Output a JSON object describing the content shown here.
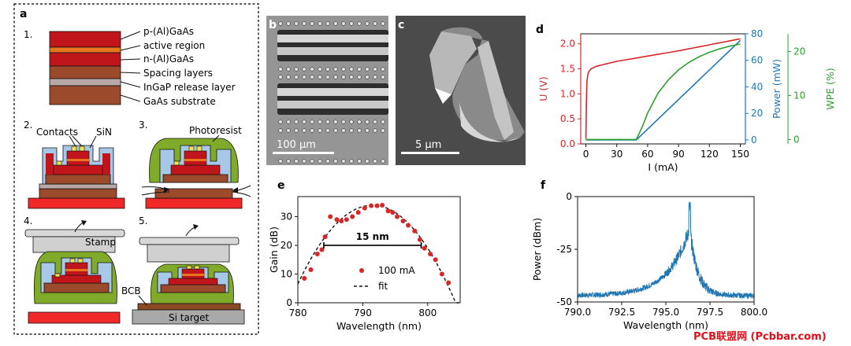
{
  "panel_a": {
    "label": "a",
    "step_labels": [
      "1.",
      "2.",
      "3.",
      "4.",
      "5."
    ],
    "layers": [
      {
        "name": "p-(Al)GaAs",
        "color": "#c0151b"
      },
      {
        "name": "active region",
        "color": "#e8741c"
      },
      {
        "name": "n-(Al)GaAs",
        "color": "#c0151b"
      },
      {
        "name": "Spacing layers",
        "color": "#9c4a2c"
      },
      {
        "name": "InGaP release layer",
        "color": "#b8a8a8"
      },
      {
        "name": "GaAs substrate",
        "color": "#9c4a2c"
      }
    ],
    "contacts_label": "Contacts",
    "sin_label": "SiN",
    "photoresist_label": "Photoresist",
    "stamp_label": "Stamp",
    "bcb_label": "BCB",
    "si_target_label": "Si target",
    "colors": {
      "photoresist": "#7faa2a",
      "sin": "#a8c8e8",
      "stamp": "#d0d0d0",
      "target": "#f02828",
      "si": "#a8a8a8",
      "contact": "#f2e14a"
    }
  },
  "panel_b": {
    "label": "b",
    "scalebar": "100 μm"
  },
  "panel_c": {
    "label": "c",
    "scalebar": "5 μm"
  },
  "panel_d": {
    "label": "d"
  },
  "panel_e": {
    "label": "e",
    "annotation": "15 nm"
  },
  "panel_f": {
    "label": "f"
  },
  "watermark": "PCB联盟网 (Pcbbar.com)",
  "chart_data": [
    {
      "id": "d",
      "type": "line",
      "xlabel": "I (mA)",
      "x_ticks": [
        0,
        30,
        60,
        90,
        120,
        150
      ],
      "xlim": [
        -5,
        155
      ],
      "axes": [
        {
          "label": "U (V)",
          "color": "#d62728",
          "ylim": [
            0,
            2.2
          ],
          "ticks": [
            "0.0",
            "0.5",
            "1.0",
            "1.5",
            "2.0"
          ]
        },
        {
          "label": "Power (mW)",
          "color": "#1f77b4",
          "ylim": [
            -3,
            80
          ],
          "ticks": [
            "0",
            "20",
            "40",
            "60",
            "80"
          ]
        },
        {
          "label": "WPE (%)",
          "color": "#2ca02c",
          "ylim": [
            -1,
            24
          ],
          "ticks": [
            "0",
            "10",
            "20"
          ]
        }
      ],
      "series": [
        {
          "name": "U",
          "axis": 0,
          "x": [
            0,
            0.5,
            1,
            2,
            3,
            5,
            10,
            20,
            30,
            50,
            70,
            90,
            110,
            130,
            150
          ],
          "y": [
            0.1,
            0.8,
            1.25,
            1.4,
            1.45,
            1.5,
            1.55,
            1.6,
            1.65,
            1.72,
            1.79,
            1.86,
            1.94,
            2.02,
            2.1
          ]
        },
        {
          "name": "Power",
          "axis": 1,
          "x": [
            0,
            49,
            150
          ],
          "y": [
            0,
            0,
            75
          ]
        },
        {
          "name": "WPE",
          "axis": 2,
          "x": [
            0,
            49,
            55,
            60,
            70,
            80,
            90,
            100,
            110,
            120,
            130,
            140,
            150
          ],
          "y": [
            0,
            0,
            3,
            6,
            10.5,
            13.5,
            15.8,
            17.5,
            18.8,
            19.8,
            20.6,
            21.2,
            21.7
          ]
        }
      ]
    },
    {
      "id": "e",
      "type": "scatter",
      "xlabel": "Wavelength (nm)",
      "ylabel": "Gain (dB)",
      "xlim": [
        780,
        805
      ],
      "ylim": [
        0,
        37
      ],
      "x_ticks": [
        780,
        790,
        800
      ],
      "y_ticks": [
        0,
        10,
        20,
        30
      ],
      "legend": [
        "100 mA",
        "fit"
      ],
      "legend_position": "bottom-center",
      "series": [
        {
          "name": "100 mA",
          "x": [
            781,
            782,
            783,
            783.7,
            784.2,
            785,
            786,
            786.7,
            787.5,
            788.4,
            789.3,
            790.3,
            791.3,
            792.2,
            793,
            793.9,
            794.6,
            795.3,
            796.2,
            797,
            798,
            798.8,
            799.5,
            800.4,
            801.2,
            802.2,
            803.2
          ],
          "y": [
            8.5,
            11.5,
            17,
            18.5,
            23,
            30,
            29,
            28.5,
            29,
            30,
            31.5,
            33,
            33.8,
            33.8,
            34,
            32,
            31.5,
            30,
            28.5,
            27,
            25,
            22,
            19,
            17,
            15,
            10,
            7
          ]
        },
        {
          "name": "fit",
          "type": "parabola",
          "peak_x": 791.5,
          "peak_y": 34,
          "half_width": 12.8
        }
      ],
      "annotation": {
        "text": "15 nm",
        "x_start": 784,
        "x_end": 799,
        "y": 20
      }
    },
    {
      "id": "f",
      "type": "line",
      "xlabel": "Wavelength (nm)",
      "ylabel": "Power (dBm)",
      "xlim": [
        790,
        800
      ],
      "ylim": [
        -50,
        0
      ],
      "x_ticks": [
        "790.0",
        "792.5",
        "795.0",
        "797.5",
        "800.0"
      ],
      "y_ticks": [
        0,
        -25,
        -50
      ],
      "peak_wavelength": 796.35,
      "peak_power": -5.5,
      "noise_floor": -47
    }
  ]
}
